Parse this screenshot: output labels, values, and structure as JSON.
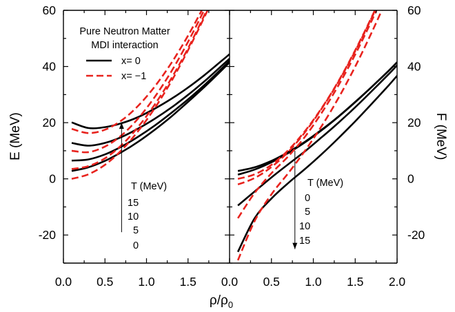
{
  "chart_data": [
    {
      "type": "line",
      "panel": "left",
      "ylabel": "E (MeV)",
      "xlim": [
        0.0,
        2.0
      ],
      "ylim": [
        -30,
        60
      ],
      "x_ticks": [
        "0.0",
        "0.5",
        "1.0",
        "1.5"
      ],
      "y_ticks": [
        "60",
        "40",
        "20",
        "0",
        "-20"
      ],
      "legend": {
        "title_lines": [
          "Pure Neutron Matter",
          "MDI interaction"
        ],
        "entries": [
          {
            "label": "x=  0",
            "style": "solid",
            "color": "#000000"
          },
          {
            "label": "x= −1",
            "style": "dashed",
            "color": "#e8231e"
          }
        ]
      },
      "annotation": {
        "title": "T (MeV)",
        "values": [
          "15",
          "10",
          "5",
          "0"
        ],
        "arrow": "up",
        "arrow_x": 0.7,
        "arrow_y": [
          -19,
          20
        ]
      },
      "series": [
        {
          "style": "solid",
          "T": 15,
          "x": [
            0.1,
            0.3,
            0.5,
            0.7,
            0.9,
            1.1,
            1.3,
            1.5,
            1.7,
            1.9,
            2.0
          ],
          "values": [
            20.1,
            18.1,
            18.4,
            19.8,
            22.0,
            25.0,
            28.5,
            32.5,
            37.0,
            41.9,
            44.4
          ]
        },
        {
          "style": "solid",
          "T": 10,
          "x": [
            0.1,
            0.3,
            0.5,
            0.7,
            0.9,
            1.1,
            1.3,
            1.5,
            1.7,
            1.9,
            2.0
          ],
          "values": [
            12.8,
            11.8,
            12.8,
            14.9,
            17.9,
            21.4,
            25.4,
            29.9,
            34.8,
            40.1,
            42.8
          ]
        },
        {
          "style": "solid",
          "T": 5,
          "x": [
            0.1,
            0.3,
            0.5,
            0.7,
            0.9,
            1.1,
            1.3,
            1.5,
            1.7,
            1.9,
            2.0
          ],
          "values": [
            6.5,
            6.9,
            8.7,
            11.5,
            15.0,
            19.0,
            23.5,
            28.3,
            33.5,
            39.1,
            42.0
          ]
        },
        {
          "style": "solid",
          "T": 0,
          "x": [
            0.1,
            0.3,
            0.5,
            0.7,
            0.9,
            1.1,
            1.3,
            1.5,
            1.7,
            1.9,
            2.0
          ],
          "values": [
            2.8,
            4.1,
            6.4,
            9.5,
            13.2,
            17.5,
            22.2,
            27.4,
            32.8,
            38.5,
            41.5
          ]
        },
        {
          "style": "dashed",
          "T": 15,
          "x": [
            0.1,
            0.3,
            0.5,
            0.7,
            0.9,
            1.1,
            1.3,
            1.5,
            1.7,
            1.9
          ],
          "values": [
            17.8,
            16.3,
            17.5,
            20.8,
            26.0,
            32.9,
            41.3,
            51.0,
            62.0,
            74.0
          ]
        },
        {
          "style": "dashed",
          "T": 10,
          "x": [
            0.1,
            0.3,
            0.5,
            0.7,
            0.9,
            1.1,
            1.3,
            1.5,
            1.7,
            1.9
          ],
          "values": [
            10.0,
            9.5,
            11.5,
            15.5,
            21.5,
            29.2,
            38.3,
            48.8,
            60.5,
            73.3
          ]
        },
        {
          "style": "dashed",
          "T": 5,
          "x": [
            0.1,
            0.3,
            0.5,
            0.7,
            0.9,
            1.1,
            1.3,
            1.5,
            1.7,
            1.9
          ],
          "values": [
            3.5,
            4.5,
            7.3,
            12.0,
            18.5,
            26.5,
            35.8,
            46.5,
            58.5,
            71.5
          ]
        },
        {
          "style": "dashed",
          "T": 0,
          "x": [
            0.1,
            0.3,
            0.5,
            0.7,
            0.9,
            1.1,
            1.3,
            1.5,
            1.7,
            1.9
          ],
          "values": [
            0.0,
            1.6,
            5.0,
            10.2,
            17.0,
            25.2,
            34.8,
            45.8,
            57.8,
            70.8
          ]
        }
      ]
    },
    {
      "type": "line",
      "panel": "right",
      "ylabel": "F (MeV)",
      "xlim": [
        0.0,
        2.0
      ],
      "ylim": [
        -30,
        60
      ],
      "x_ticks": [
        "0.0",
        "0.5",
        "1.0",
        "1.5",
        "2.0"
      ],
      "y_ticks": [
        "60",
        "40",
        "20",
        "0",
        "-20"
      ],
      "annotation": {
        "title": "T (MeV)",
        "values": [
          "0",
          "5",
          "10",
          "15"
        ],
        "arrow": "down",
        "arrow_x": 0.78,
        "arrow_y": [
          10,
          -25
        ]
      },
      "series": [
        {
          "style": "solid",
          "T": 0,
          "x": [
            0.1,
            0.3,
            0.5,
            0.7,
            0.9,
            1.1,
            1.3,
            1.5,
            1.7,
            1.9,
            2.0
          ],
          "values": [
            2.8,
            4.1,
            6.4,
            9.5,
            13.2,
            17.5,
            22.2,
            27.4,
            32.8,
            38.5,
            41.5
          ]
        },
        {
          "style": "solid",
          "T": 5,
          "x": [
            0.1,
            0.3,
            0.5,
            0.7,
            0.9,
            1.1,
            1.3,
            1.5,
            1.7,
            1.9,
            2.0
          ],
          "values": [
            1.5,
            3.3,
            5.9,
            9.2,
            13.0,
            17.3,
            22.1,
            27.3,
            32.8,
            38.5,
            41.5
          ]
        },
        {
          "style": "solid",
          "T": 10,
          "x": [
            0.1,
            0.3,
            0.5,
            0.7,
            0.9,
            1.1,
            1.3,
            1.5,
            1.7,
            1.9,
            2.0
          ],
          "values": [
            -9.5,
            -4.5,
            0.5,
            5.2,
            9.8,
            14.8,
            20.0,
            25.5,
            31.3,
            37.3,
            40.4
          ]
        },
        {
          "style": "solid",
          "T": 15,
          "x": [
            0.1,
            0.3,
            0.5,
            0.7,
            0.9,
            1.1,
            1.3,
            1.5,
            1.7,
            1.9,
            2.0
          ],
          "values": [
            -26.0,
            -14.0,
            -7.0,
            -1.5,
            3.5,
            8.8,
            14.5,
            20.5,
            26.8,
            33.3,
            36.7
          ]
        },
        {
          "style": "dashed",
          "T": 0,
          "x": [
            0.1,
            0.3,
            0.5,
            0.7,
            0.9,
            1.1,
            1.3,
            1.5,
            1.7,
            1.9
          ],
          "values": [
            0.0,
            1.6,
            5.0,
            10.2,
            17.0,
            25.2,
            34.8,
            45.8,
            57.8,
            70.8
          ]
        },
        {
          "style": "dashed",
          "T": 5,
          "x": [
            0.1,
            0.3,
            0.5,
            0.7,
            0.9,
            1.1,
            1.3,
            1.5,
            1.7,
            1.9
          ],
          "values": [
            -2.0,
            0.3,
            4.2,
            9.6,
            16.6,
            25.0,
            34.6,
            45.5,
            57.5,
            70.5
          ]
        },
        {
          "style": "dashed",
          "T": 10,
          "x": [
            0.1,
            0.3,
            0.5,
            0.7,
            0.9,
            1.1,
            1.3,
            1.5,
            1.7,
            1.9
          ],
          "values": [
            -14.0,
            -5.0,
            2.0,
            8.0,
            15.0,
            23.5,
            33.3,
            44.3,
            56.5,
            69.5
          ]
        },
        {
          "style": "dashed",
          "T": 15,
          "x": [
            0.1,
            0.3,
            0.5,
            0.7,
            0.9,
            1.1,
            1.3,
            1.5,
            1.7,
            1.9
          ],
          "values": [
            -29.0,
            -15.0,
            -5.5,
            2.0,
            10.0,
            18.8,
            28.8,
            40.0,
            52.3,
            65.5
          ]
        }
      ]
    }
  ],
  "shared": {
    "xlabel_main": "ρ/ρ",
    "xlabel_sub": "0"
  }
}
